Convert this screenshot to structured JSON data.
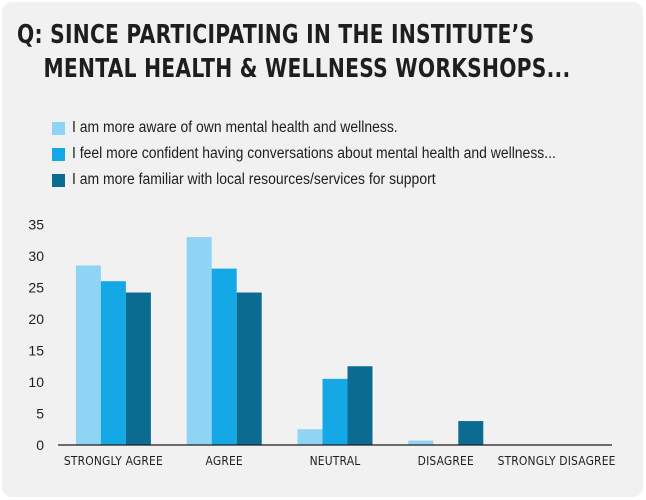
{
  "chart_data": {
    "type": "bar",
    "title_line1": "Q: SINCE PARTICIPATING IN THE INSTITUTE’S",
    "title_line2": "MENTAL HEALTH & WELLNESS WORKSHOPS...",
    "categories": [
      "STRONGLY AGREE",
      "AGREE",
      "NEUTRAL",
      "DISAGREE",
      "STRONGLY DISAGREE"
    ],
    "series": [
      {
        "name": "I am more aware of own mental health and wellness.",
        "color": "#8fd3f5",
        "values": [
          28.5,
          33,
          2.5,
          0.7,
          0
        ]
      },
      {
        "name": "I feel more confident having conversations about mental health and wellness...",
        "color": "#14a9e6",
        "values": [
          26,
          28,
          10.5,
          0,
          0
        ]
      },
      {
        "name": "I am more familiar with local resources/services for support",
        "color": "#0b6b90",
        "values": [
          24.2,
          24.2,
          12.5,
          3.8,
          0
        ]
      }
    ],
    "yticks": [
      0,
      5,
      10,
      15,
      20,
      25,
      30,
      35
    ],
    "ylim": [
      0,
      35
    ],
    "xlabel": "",
    "ylabel": "",
    "legend_position": "top-left",
    "grid": false
  }
}
